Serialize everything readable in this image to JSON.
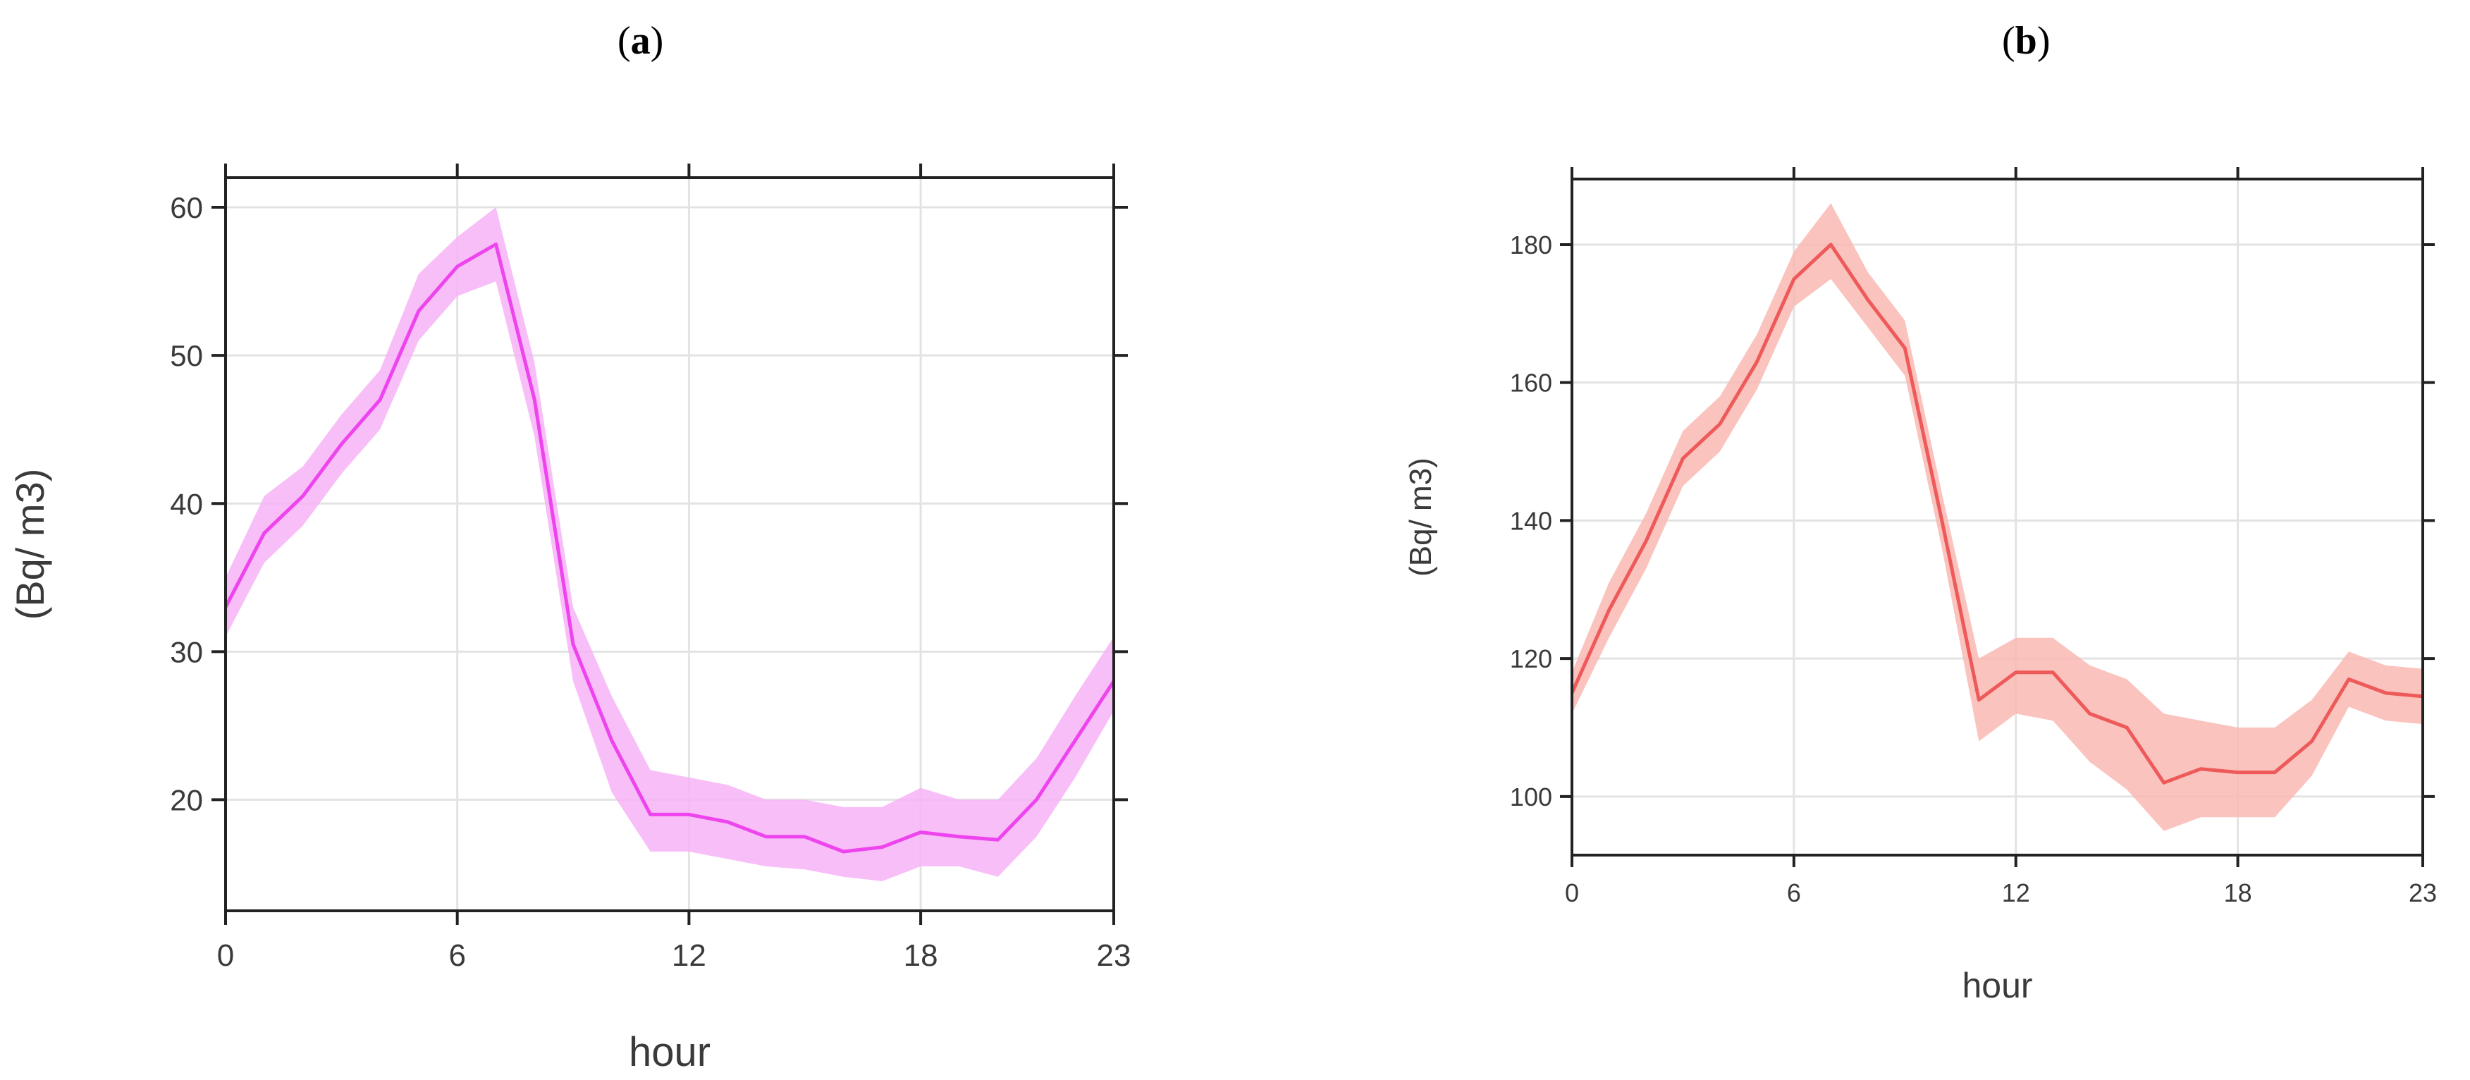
{
  "panels": {
    "a": {
      "open": "(",
      "letter": "a",
      "close": ")"
    },
    "b": {
      "open": "(",
      "letter": "b",
      "close": ")"
    }
  },
  "colors": {
    "a_line": "#ee44ee",
    "a_band": "#f7b3f7",
    "b_line": "#ee5a5a",
    "b_band": "#f9b8b3",
    "axis": "#222222",
    "grid": "#e3e3e3"
  },
  "chart_data": [
    {
      "panel": "a",
      "type": "line",
      "xlabel": "hour",
      "ylabel": "(Bq/ m3)",
      "xlim": [
        0,
        23
      ],
      "ylim": [
        12.5,
        62
      ],
      "xticks": [
        0,
        6,
        12,
        18,
        23
      ],
      "yticks": [
        20,
        30,
        40,
        50,
        60
      ],
      "grid": true,
      "x": [
        0,
        1,
        2,
        3,
        4,
        5,
        6,
        7,
        8,
        9,
        10,
        11,
        12,
        13,
        14,
        15,
        16,
        17,
        18,
        19,
        20,
        21,
        22,
        23
      ],
      "series": [
        {
          "values": [
            33,
            38,
            40.5,
            44,
            47,
            53,
            56,
            57.5,
            47,
            30.5,
            24,
            19,
            19,
            18.5,
            17.5,
            17.5,
            16.5,
            16.8,
            17.8,
            17.5,
            17.3,
            20,
            24,
            28
          ],
          "lower": [
            31,
            36,
            38.5,
            42,
            45,
            51,
            54,
            55,
            44.5,
            28,
            20.5,
            16.5,
            16.5,
            16,
            15.5,
            15.3,
            14.8,
            14.5,
            15.5,
            15.5,
            14.8,
            17.5,
            21.5,
            26
          ],
          "upper": [
            35,
            40.5,
            42.5,
            46,
            49,
            55.5,
            58,
            60,
            49.5,
            33,
            27,
            22,
            21.5,
            21,
            20,
            20,
            19.5,
            19.5,
            20.8,
            20,
            20,
            22.8,
            27,
            31
          ]
        }
      ]
    },
    {
      "panel": "b",
      "type": "line",
      "xlabel": "hour",
      "ylabel": "(Bq/ m3)",
      "xlim": [
        0,
        23
      ],
      "ylim": [
        91.5,
        189.5
      ],
      "xticks": [
        0,
        6,
        12,
        18,
        23
      ],
      "yticks": [
        100,
        120,
        140,
        160,
        180
      ],
      "grid": true,
      "x": [
        0,
        1,
        2,
        3,
        4,
        5,
        6,
        7,
        8,
        9,
        10,
        11,
        12,
        13,
        14,
        15,
        16,
        17,
        18,
        19,
        20,
        21,
        22,
        23
      ],
      "series": [
        {
          "values": [
            115,
            127,
            137,
            149,
            154,
            163,
            175,
            180,
            172,
            165,
            140,
            114,
            118,
            118,
            112,
            110,
            102,
            104,
            103.5,
            103.5,
            108,
            117,
            115,
            114.5
          ],
          "lower": [
            112,
            123,
            133,
            145,
            150,
            159,
            171,
            175,
            168,
            161,
            136,
            108,
            112,
            111,
            105,
            101,
            95,
            97,
            97,
            97,
            103,
            113,
            111,
            110.5
          ],
          "upper": [
            118,
            131,
            141,
            153,
            158,
            167,
            179,
            186,
            176,
            169,
            144,
            120,
            123,
            123,
            119,
            117,
            112,
            111,
            110,
            110,
            114,
            121,
            119,
            118.5
          ]
        }
      ]
    }
  ]
}
